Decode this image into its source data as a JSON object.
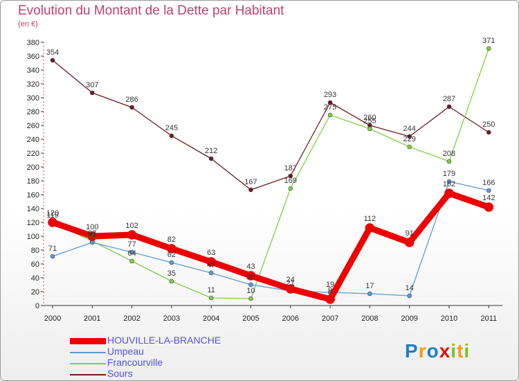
{
  "chart_data": {
    "type": "line",
    "title": "Evolution du Montant de la Dette par Habitant",
    "unit": "(en €)",
    "x": [
      "2000",
      "2001",
      "2002",
      "2003",
      "2004",
      "2005",
      "2006",
      "2007",
      "2008",
      "2009",
      "2010",
      "2011"
    ],
    "ylim": [
      0,
      380
    ],
    "yticks": [
      0,
      20,
      40,
      60,
      80,
      100,
      120,
      140,
      160,
      180,
      200,
      220,
      240,
      260,
      280,
      300,
      320,
      340,
      360,
      380
    ],
    "grid": false,
    "legend_position": "bottom-left",
    "series": [
      {
        "name": "HOUVILLE-LA-BRANCHE",
        "color": "#ee0000",
        "values": [
          120,
          100,
          102,
          82,
          63,
          43,
          24,
          9,
          112,
          91,
          162,
          142
        ],
        "labels": [
          "120",
          "100",
          "102",
          "82",
          "63",
          "43",
          "24",
          "9",
          "112",
          "91",
          "162",
          "142"
        ]
      },
      {
        "name": "Umpeau",
        "color": "#5b9bd5",
        "values": [
          71,
          91,
          77,
          62,
          47,
          30,
          21,
          19,
          17,
          14,
          179,
          166
        ],
        "labels": [
          "71",
          "91",
          "77",
          "62",
          "47",
          "30",
          "21",
          "19",
          "17",
          "14",
          "179",
          "166"
        ]
      },
      {
        "name": "Francourville",
        "color": "#80d040",
        "values": [
          119,
          93,
          64,
          35,
          11,
          10,
          169,
          275,
          255,
          229,
          208,
          371
        ],
        "labels": [
          "119",
          "93",
          "64",
          "35",
          "11",
          "10",
          "169",
          "275",
          "255",
          "229",
          "208",
          "371"
        ]
      },
      {
        "name": "Sours",
        "color": "#6b1c1c",
        "values": [
          354,
          307,
          286,
          245,
          212,
          167,
          187,
          293,
          260,
          244,
          287,
          250
        ],
        "labels": [
          "354",
          "307",
          "286",
          "245",
          "212",
          "167",
          "187",
          "293",
          "260",
          "244",
          "287",
          "250"
        ]
      }
    ]
  },
  "logo": {
    "letters": [
      "P",
      "r",
      "o",
      "x",
      "i",
      "t",
      "i"
    ],
    "colors": [
      "#1e7fc8",
      "#f39c12",
      "#1e7fc8",
      "#e01010",
      "#80c020",
      "#f39c12",
      "#80c020"
    ]
  }
}
